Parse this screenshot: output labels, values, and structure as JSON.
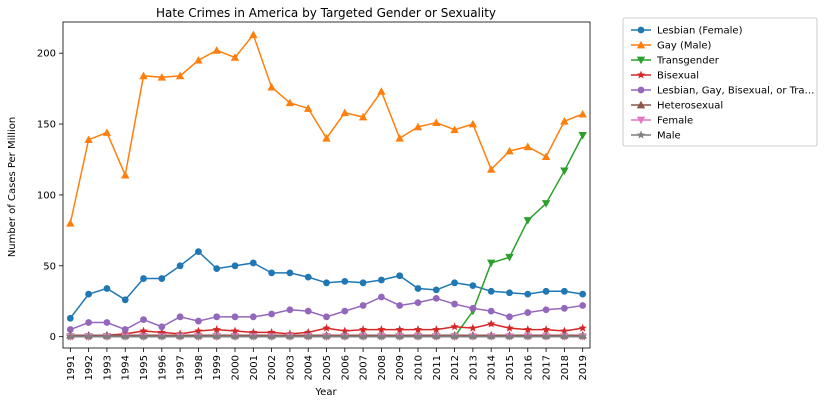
{
  "chart_data": {
    "type": "line",
    "title": "Hate Crimes in America by Targeted Gender or Sexuality",
    "xlabel": "Year",
    "ylabel": "Number of Cases Per Million",
    "x": [
      1991,
      1992,
      1993,
      1994,
      1995,
      1996,
      1997,
      1998,
      1999,
      2000,
      2001,
      2002,
      2003,
      2004,
      2005,
      2006,
      2007,
      2008,
      2009,
      2010,
      2011,
      2012,
      2013,
      2014,
      2015,
      2016,
      2017,
      2018,
      2019
    ],
    "xlim": [
      1990.6,
      2019.4
    ],
    "ylim": [
      -8,
      222
    ],
    "yticks": [
      0,
      50,
      100,
      150,
      200
    ],
    "legend_position": "outside-right",
    "grid": false,
    "series": [
      {
        "name": "Lesbian (Female)",
        "color": "#1f77b4",
        "marker": "circle",
        "values": [
          13,
          30,
          34,
          26,
          41,
          41,
          50,
          60,
          48,
          50,
          52,
          45,
          45,
          42,
          38,
          39,
          38,
          40,
          43,
          34,
          33,
          38,
          36,
          32,
          31,
          30,
          32,
          32,
          30
        ]
      },
      {
        "name": "Gay (Male)",
        "color": "#ff7f0e",
        "marker": "triangle-up",
        "values": [
          80,
          139,
          144,
          114,
          184,
          183,
          184,
          195,
          202,
          197,
          213,
          176,
          165,
          161,
          140,
          158,
          155,
          173,
          140,
          148,
          151,
          146,
          150,
          118,
          131,
          134,
          127,
          152,
          157
        ]
      },
      {
        "name": "Transgender",
        "color": "#2ca02c",
        "marker": "triangle-down",
        "values": [
          0,
          0,
          0,
          0,
          0,
          0,
          0,
          0,
          0,
          0,
          0,
          0,
          0,
          0,
          0,
          0,
          0,
          0,
          0,
          0,
          0,
          0,
          18,
          52,
          56,
          82,
          94,
          117,
          142
        ]
      },
      {
        "name": "Bisexual",
        "color": "#d62728",
        "marker": "star",
        "values": [
          0,
          0,
          1,
          2,
          4,
          3,
          2,
          4,
          5,
          4,
          3,
          3,
          2,
          3,
          6,
          4,
          5,
          5,
          5,
          5,
          5,
          7,
          6,
          9,
          6,
          5,
          5,
          4,
          6
        ]
      },
      {
        "name": "Lesbian, Gay, Bisexual, or Tra…",
        "color": "#9467bd",
        "marker": "circle",
        "values": [
          5,
          10,
          10,
          5,
          12,
          7,
          14,
          11,
          14,
          14,
          14,
          16,
          19,
          18,
          14,
          18,
          22,
          28,
          22,
          24,
          27,
          23,
          20,
          18,
          14,
          17,
          19,
          20,
          22
        ]
      },
      {
        "name": "Heterosexual",
        "color": "#8c564b",
        "marker": "triangle-up",
        "values": [
          1,
          1,
          1,
          1,
          1,
          1,
          1,
          1,
          1,
          1,
          1,
          1,
          1,
          1,
          1,
          1,
          1,
          1,
          1,
          1,
          1,
          1,
          1,
          1,
          1,
          1,
          1,
          1,
          1
        ]
      },
      {
        "name": "Female",
        "color": "#e377c2",
        "marker": "triangle-down",
        "values": [
          0,
          0,
          0,
          0,
          0,
          0,
          0,
          0,
          0,
          0,
          0,
          0,
          0,
          0,
          0,
          0,
          0,
          0,
          0,
          0,
          0,
          0,
          0,
          0,
          0,
          0,
          0,
          0,
          0
        ]
      },
      {
        "name": "Male",
        "color": "#7f7f7f",
        "marker": "star",
        "values": [
          0,
          0,
          0,
          0,
          0,
          0,
          0,
          0,
          0,
          0,
          0,
          0,
          0,
          0,
          0,
          0,
          0,
          0,
          0,
          0,
          0,
          0,
          0,
          0,
          0,
          0,
          0,
          0,
          0
        ]
      }
    ]
  }
}
